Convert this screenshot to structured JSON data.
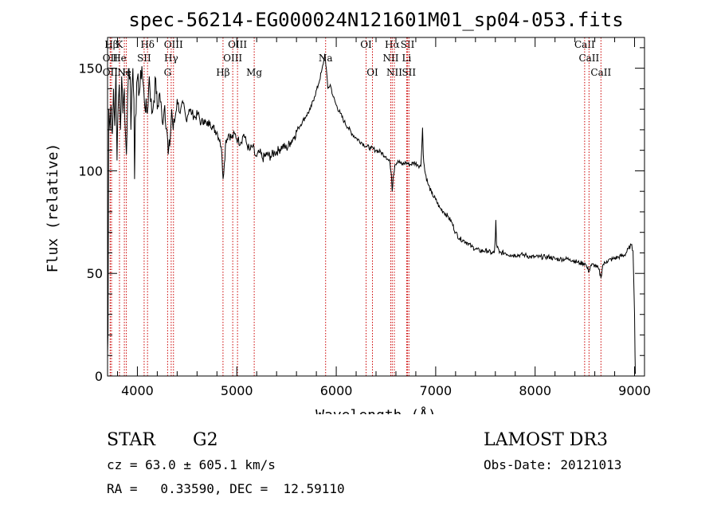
{
  "chart_data": {
    "type": "line",
    "title": "spec-56214-EG000024N121601M01_sp04-053.fits",
    "xlabel": "Wavelength (Å)",
    "ylabel": "Flux (relative)",
    "xlim": [
      3700,
      9100
    ],
    "ylim": [
      0,
      165
    ],
    "x_ticks": [
      4000,
      5000,
      6000,
      7000,
      8000,
      9000
    ],
    "x_tick_labels": [
      "4000",
      "5000",
      "6000",
      "7000",
      "8000",
      "9000"
    ],
    "y_ticks": [
      0,
      50,
      100,
      150
    ],
    "y_tick_labels": [
      "0",
      "50",
      "100",
      "150"
    ],
    "x_minor_step": 200,
    "y_minor_step": 10,
    "series": [
      {
        "name": "spectrum",
        "color": "#000000",
        "points": [
          [
            3700,
            10
          ],
          [
            3705,
            22
          ],
          [
            3712,
            130
          ],
          [
            3725,
            120
          ],
          [
            3735,
            132
          ],
          [
            3748,
            118
          ],
          [
            3760,
            140
          ],
          [
            3772,
            122
          ],
          [
            3785,
            150
          ],
          [
            3795,
            105
          ],
          [
            3805,
            128
          ],
          [
            3818,
            142
          ],
          [
            3830,
            120
          ],
          [
            3842,
            146
          ],
          [
            3855,
            128
          ],
          [
            3868,
            140
          ],
          [
            3880,
            118
          ],
          [
            3890,
            108
          ],
          [
            3902,
            136
          ],
          [
            3915,
            150
          ],
          [
            3928,
            146
          ],
          [
            3935,
            120
          ],
          [
            3945,
            140
          ],
          [
            3955,
            150
          ],
          [
            3965,
            135
          ],
          [
            3972,
            96
          ],
          [
            3980,
            126
          ],
          [
            4000,
            145
          ],
          [
            4020,
            138
          ],
          [
            4045,
            151
          ],
          [
            4070,
            134
          ],
          [
            4100,
            128
          ],
          [
            4120,
            146
          ],
          [
            4145,
            128
          ],
          [
            4165,
            134
          ],
          [
            4185,
            145
          ],
          [
            4200,
            130
          ],
          [
            4225,
            138
          ],
          [
            4250,
            124
          ],
          [
            4275,
            132
          ],
          [
            4300,
            118
          ],
          [
            4310,
            108
          ],
          [
            4325,
            112
          ],
          [
            4345,
            130
          ],
          [
            4360,
            120
          ],
          [
            4380,
            126
          ],
          [
            4400,
            135
          ],
          [
            4430,
            128
          ],
          [
            4460,
            133
          ],
          [
            4490,
            125
          ],
          [
            4520,
            130
          ],
          [
            4550,
            128
          ],
          [
            4580,
            126
          ],
          [
            4610,
            128
          ],
          [
            4640,
            123
          ],
          [
            4670,
            125
          ],
          [
            4700,
            122
          ],
          [
            4730,
            124
          ],
          [
            4760,
            121
          ],
          [
            4800,
            119
          ],
          [
            4830,
            115
          ],
          [
            4850,
            108
          ],
          [
            4862,
            96
          ],
          [
            4875,
            104
          ],
          [
            4890,
            115
          ],
          [
            4920,
            118
          ],
          [
            4950,
            116
          ],
          [
            4980,
            118
          ],
          [
            5010,
            115
          ],
          [
            5040,
            114
          ],
          [
            5070,
            118
          ],
          [
            5100,
            113
          ],
          [
            5130,
            110
          ],
          [
            5160,
            112
          ],
          [
            5180,
            108
          ],
          [
            5200,
            107
          ],
          [
            5230,
            109
          ],
          [
            5260,
            106
          ],
          [
            5300,
            108
          ],
          [
            5340,
            107
          ],
          [
            5380,
            109
          ],
          [
            5420,
            110
          ],
          [
            5460,
            112
          ],
          [
            5500,
            111
          ],
          [
            5540,
            114
          ],
          [
            5580,
            117
          ],
          [
            5620,
            121
          ],
          [
            5660,
            124
          ],
          [
            5700,
            127
          ],
          [
            5740,
            130
          ],
          [
            5780,
            136
          ],
          [
            5820,
            142
          ],
          [
            5850,
            148
          ],
          [
            5870,
            152
          ],
          [
            5885,
            157
          ],
          [
            5900,
            150
          ],
          [
            5915,
            140
          ],
          [
            5940,
            142
          ],
          [
            5970,
            136
          ],
          [
            6000,
            132
          ],
          [
            6040,
            128
          ],
          [
            6080,
            124
          ],
          [
            6120,
            121
          ],
          [
            6160,
            118
          ],
          [
            6200,
            116
          ],
          [
            6250,
            114
          ],
          [
            6300,
            112
          ],
          [
            6350,
            111
          ],
          [
            6400,
            110
          ],
          [
            6450,
            109
          ],
          [
            6500,
            107
          ],
          [
            6540,
            104
          ],
          [
            6555,
            98
          ],
          [
            6563,
            90
          ],
          [
            6572,
            97
          ],
          [
            6590,
            103
          ],
          [
            6620,
            105
          ],
          [
            6660,
            103
          ],
          [
            6700,
            104
          ],
          [
            6740,
            103
          ],
          [
            6780,
            104
          ],
          [
            6820,
            103
          ],
          [
            6850,
            102
          ],
          [
            6860,
            111
          ],
          [
            6868,
            121
          ],
          [
            6875,
            108
          ],
          [
            6890,
            100
          ],
          [
            6920,
            94
          ],
          [
            6960,
            89
          ],
          [
            7000,
            86
          ],
          [
            7040,
            82
          ],
          [
            7080,
            80
          ],
          [
            7120,
            78
          ],
          [
            7160,
            75
          ],
          [
            7200,
            70
          ],
          [
            7240,
            67
          ],
          [
            7280,
            66
          ],
          [
            7320,
            65
          ],
          [
            7360,
            63
          ],
          [
            7400,
            62
          ],
          [
            7440,
            61
          ],
          [
            7480,
            61
          ],
          [
            7520,
            61
          ],
          [
            7560,
            60
          ],
          [
            7590,
            60
          ],
          [
            7600,
            68
          ],
          [
            7605,
            76
          ],
          [
            7612,
            64
          ],
          [
            7640,
            60
          ],
          [
            7700,
            60
          ],
          [
            7750,
            59
          ],
          [
            7800,
            59
          ],
          [
            7850,
            59
          ],
          [
            7900,
            59
          ],
          [
            7950,
            58
          ],
          [
            8000,
            58
          ],
          [
            8050,
            58
          ],
          [
            8100,
            58
          ],
          [
            8150,
            58
          ],
          [
            8200,
            57
          ],
          [
            8250,
            57
          ],
          [
            8300,
            57
          ],
          [
            8350,
            57
          ],
          [
            8400,
            56
          ],
          [
            8450,
            55
          ],
          [
            8500,
            55
          ],
          [
            8520,
            53
          ],
          [
            8542,
            51
          ],
          [
            8560,
            54
          ],
          [
            8600,
            54
          ],
          [
            8640,
            52
          ],
          [
            8662,
            48
          ],
          [
            8680,
            54
          ],
          [
            8720,
            56
          ],
          [
            8780,
            57
          ],
          [
            8840,
            58
          ],
          [
            8900,
            59
          ],
          [
            8940,
            62
          ],
          [
            8965,
            64
          ],
          [
            8985,
            61
          ],
          [
            8995,
            40
          ],
          [
            9000,
            30
          ],
          [
            9005,
            10
          ],
          [
            9008,
            1
          ]
        ]
      }
    ],
    "line_markers": [
      {
        "label": "Hβ",
        "x": 3740,
        "row": 0
      },
      {
        "label": "K",
        "x": 3820,
        "row": 0
      },
      {
        "label": "Hδ",
        "x": 4102,
        "row": 0
      },
      {
        "label": "OIII",
        "x": 4363,
        "row": 0
      },
      {
        "label": "OIII",
        "x": 5007,
        "row": 0
      },
      {
        "label": "OI",
        "x": 6300,
        "row": 0
      },
      {
        "label": "Hα",
        "x": 6563,
        "row": 0
      },
      {
        "label": "SII",
        "x": 6717,
        "row": 0
      },
      {
        "label": "CaII",
        "x": 8498,
        "row": 0
      },
      {
        "label": "OII",
        "x": 3727,
        "row": 1
      },
      {
        "label": "He",
        "x": 3820,
        "row": 1
      },
      {
        "label": "SII",
        "x": 4068,
        "row": 1
      },
      {
        "label": "Hγ",
        "x": 4340,
        "row": 1
      },
      {
        "label": "OIII",
        "x": 4959,
        "row": 1
      },
      {
        "label": "Na",
        "x": 5893,
        "row": 1
      },
      {
        "label": "NII",
        "x": 6548,
        "row": 1
      },
      {
        "label": "Li",
        "x": 6708,
        "row": 1
      },
      {
        "label": "CaII",
        "x": 8542,
        "row": 1
      },
      {
        "label": "OII",
        "x": 3727,
        "row": 2
      },
      {
        "label": "Ne",
        "x": 3869,
        "row": 2
      },
      {
        "label": "H",
        "x": 3889,
        "row": 2
      },
      {
        "label": "G",
        "x": 4304,
        "row": 2
      },
      {
        "label": "Hβ",
        "x": 4861,
        "row": 2
      },
      {
        "label": "Mg",
        "x": 5175,
        "row": 2
      },
      {
        "label": "OI",
        "x": 6364,
        "row": 2
      },
      {
        "label": "NII",
        "x": 6584,
        "row": 2
      },
      {
        "label": "SII",
        "x": 6731,
        "row": 2
      },
      {
        "label": "CaII",
        "x": 8662,
        "row": 2
      }
    ],
    "marker_color": "#cc0000"
  },
  "info": {
    "object_class": "STAR",
    "subclass": "G2",
    "survey": "LAMOST DR3",
    "redshift": "cz = 63.0 ± 605.1 km/s",
    "obs_date": "Obs-Date: 20121013",
    "coords": "RA =   0.33590, DEC =  12.59110"
  }
}
